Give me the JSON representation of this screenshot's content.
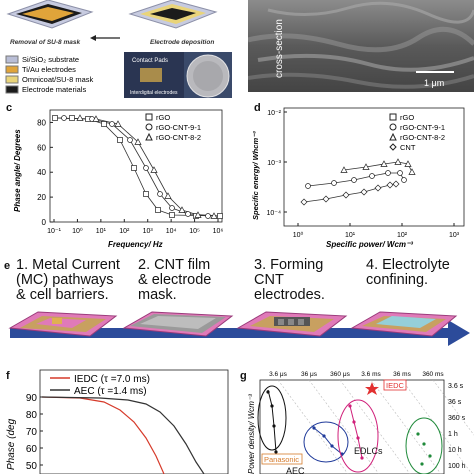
{
  "panel_a": {
    "step_left": "Removal of SU-8 mask",
    "step_right": "Electrode deposition",
    "legend": [
      {
        "label": "Si/SiO₂ substrate",
        "color": "#b9bed6"
      },
      {
        "label": "Ti/Au electrodes",
        "color": "#e0a43a"
      },
      {
        "label": "Omnicoat/SU-8 mask",
        "color": "#e9d47a"
      },
      {
        "label": "Electrode materials",
        "color": "#1b1b1b"
      }
    ],
    "photo_label_1": "Contact Pads",
    "photo_label_2": "Interdigital electrodes"
  },
  "panel_b": {
    "caption": "cross-section",
    "scale": "1 μm"
  },
  "panel_c": {
    "letter": "c",
    "xlabel": "Frequency/ Hz",
    "ylabel": "Phase angle/ Degrees",
    "legend": [
      "rGO",
      "rGO-CNT-9-1",
      "rGO-CNT-8-2"
    ],
    "x_ticks": [
      "10⁻¹",
      "10⁰",
      "10¹",
      "10²",
      "10³",
      "10⁴",
      "10⁵",
      "10⁶"
    ],
    "y_ticks": [
      "0",
      "20",
      "40",
      "60",
      "80"
    ]
  },
  "panel_d": {
    "letter": "d",
    "xlabel": "Specific power/ Wcm⁻³",
    "ylabel": "Specific energy/ Whcm⁻³",
    "legend": [
      "rGO",
      "rGO-CNT-9-1",
      "rGO-CNT-8-2",
      "CNT"
    ],
    "x_ticks": [
      "10⁰",
      "10¹",
      "10²",
      "10³"
    ],
    "y_ticks": [
      "10⁻²",
      "10⁻³",
      "10⁻⁴"
    ]
  },
  "panel_e": {
    "letter": "e",
    "steps": [
      {
        "n": "1.",
        "lines": [
          "Metal Current",
          "(MC) pathways",
          "& cell barriers."
        ]
      },
      {
        "n": "2.",
        "lines": [
          "CNT film",
          "& electrode",
          "mask."
        ]
      },
      {
        "n": "3.",
        "lines": [
          "Forming",
          "CNT",
          "electrodes."
        ]
      },
      {
        "n": "4.",
        "lines": [
          "Electrolyte",
          "confining."
        ]
      }
    ]
  },
  "panel_f": {
    "letter": "f",
    "ylabel": "Phase (deg",
    "legend": [
      {
        "label": "IEDC (τ =7.0 ms)",
        "color": "#d63a2a"
      },
      {
        "label": "AEC (τ =1.4 ms)",
        "color": "#333333"
      }
    ],
    "y_ticks": [
      "90",
      "80",
      "70",
      "60",
      "50",
      "40"
    ]
  },
  "panel_g": {
    "letter": "g",
    "ylabel": "Power density/ Wcm⁻³",
    "top_ticks": [
      "3.6 μs",
      "36 μs",
      "360 μs",
      "3.6 ms",
      "36 ms",
      "360 ms"
    ],
    "right_ticks": [
      "3.6 s",
      "36 s",
      "360 s",
      "1 h",
      "10 h",
      "100 h"
    ],
    "iedc_label": "IEDC",
    "panasonic_label": "Panasonic",
    "edlc_label": "EDLCs",
    "aec_label": "AEC",
    "colors": {
      "black": "#111111",
      "blue": "#1f3a9a",
      "magenta": "#d0207a",
      "green": "#1f8a3a",
      "orange": "#d67a2a",
      "red": "#e23030"
    }
  }
}
